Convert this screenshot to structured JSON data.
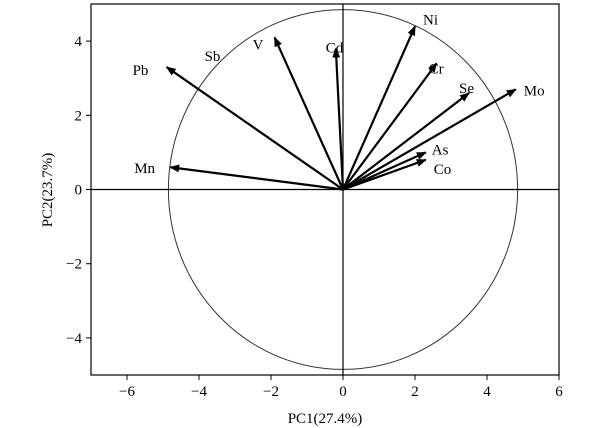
{
  "chart_data": {
    "type": "scatter",
    "subtype": "pca-biplot",
    "title": "",
    "xlabel": "PC1(27.4%)",
    "ylabel": "PC2(23.7%)",
    "xlim": [
      -7,
      6
    ],
    "ylim": [
      -5,
      5
    ],
    "xticks": [
      -6,
      -4,
      -2,
      0,
      2,
      4,
      6
    ],
    "yticks": [
      -4,
      -2,
      0,
      2,
      4
    ],
    "xtick_labels": [
      "−6",
      "−4",
      "−2",
      "0",
      "2",
      "4",
      "6"
    ],
    "ytick_labels": [
      "−4",
      "−2",
      "0",
      "2",
      "4"
    ],
    "grid": false,
    "legend": "none",
    "zero_lines": true,
    "circle_radius": 4.85,
    "line_color": "#000000",
    "circle_color": "#333333",
    "vectors": [
      {
        "name": "Ni",
        "x": 2.0,
        "y": 4.4
      },
      {
        "name": "Cd",
        "x": -0.2,
        "y": 3.8
      },
      {
        "name": "V",
        "x": -1.9,
        "y": 4.1
      },
      {
        "name": "Pb",
        "x": -4.9,
        "y": 3.3
      },
      {
        "name": "Sb",
        "x": -4.9,
        "y": 3.3
      },
      {
        "name": "Cr",
        "x": 2.6,
        "y": 3.4
      },
      {
        "name": "Se",
        "x": 3.5,
        "y": 2.6
      },
      {
        "name": "Mo",
        "x": 4.8,
        "y": 2.7
      },
      {
        "name": "As",
        "x": 2.3,
        "y": 1.0
      },
      {
        "name": "Co",
        "x": 2.3,
        "y": 0.8
      },
      {
        "name": "Mn",
        "x": -4.8,
        "y": 0.6
      }
    ]
  }
}
